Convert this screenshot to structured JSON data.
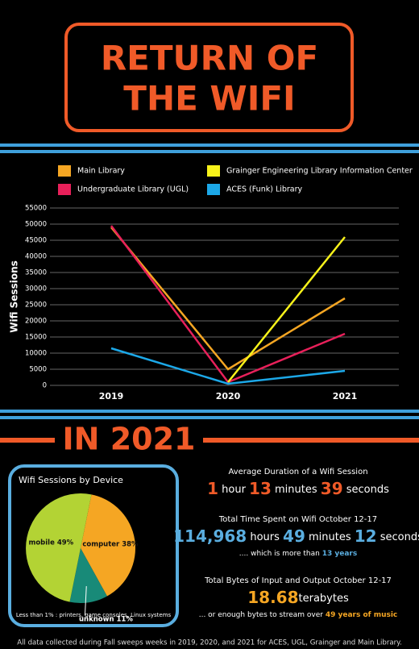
{
  "title_lines": [
    "RETURN OF",
    "THE WIFI"
  ],
  "section_heading": "IN 2021",
  "chart_data": [
    {
      "type": "line",
      "y_label": "Wifi Sessions",
      "categories": [
        "2019",
        "2020",
        "2021"
      ],
      "series": [
        {
          "name": "Main Library",
          "color": "#f5a623",
          "values": [
            49000,
            5000,
            27000
          ]
        },
        {
          "name": "Undergraduate Library (UGL)",
          "color": "#e8205a",
          "values": [
            49500,
            1000,
            16000
          ]
        },
        {
          "name": "Grainger Engineering Library Information Center",
          "color": "#f7f21a",
          "values": [
            null,
            1000,
            46000
          ]
        },
        {
          "name": "ACES (Funk) Library",
          "color": "#1ca8e8",
          "values": [
            11500,
            500,
            4500
          ]
        }
      ],
      "ylim": [
        0,
        55000
      ],
      "yticks": [
        0,
        5000,
        10000,
        15000,
        20000,
        25000,
        30000,
        35000,
        40000,
        45000,
        50000,
        55000
      ],
      "grid": true
    },
    {
      "type": "pie",
      "title": "Wifi Sessions by Device",
      "categories": [
        "computer",
        "unknown",
        "mobile"
      ],
      "values": [
        38,
        11,
        49
      ],
      "value_labels": [
        "38%",
        "11%",
        "49%"
      ],
      "colors": [
        "#f5a623",
        "#188a78",
        "#b3d334"
      ],
      "note": "Less than 1% : printers, game consoles, Linux systems"
    }
  ],
  "stats": [
    {
      "heading": "Average Duration of a Wifi Session",
      "color": "#f05a28",
      "parts": [
        "1",
        " hour ",
        "13",
        " minutes ",
        "39",
        " seconds"
      ]
    },
    {
      "heading": "Total Time Spent on Wifi October 12-17",
      "color": "#5aaee0",
      "parts": [
        "114,968",
        " hours ",
        "49",
        " minutes ",
        "12",
        " seconds"
      ],
      "note": ".... which is more than ",
      "highlight": "13 years"
    },
    {
      "heading": "Total Bytes of Input and Output October 12-17",
      "color": "#f5a623",
      "parts": [
        "18.68",
        "terabytes"
      ],
      "note": "... or enough bytes to stream over ",
      "highlight": "49 years of music"
    }
  ],
  "footer": "All data collected during Fall sweeps weeks in 2019, 2020, and 2021 for ACES, UGL, Grainger and Main Library."
}
